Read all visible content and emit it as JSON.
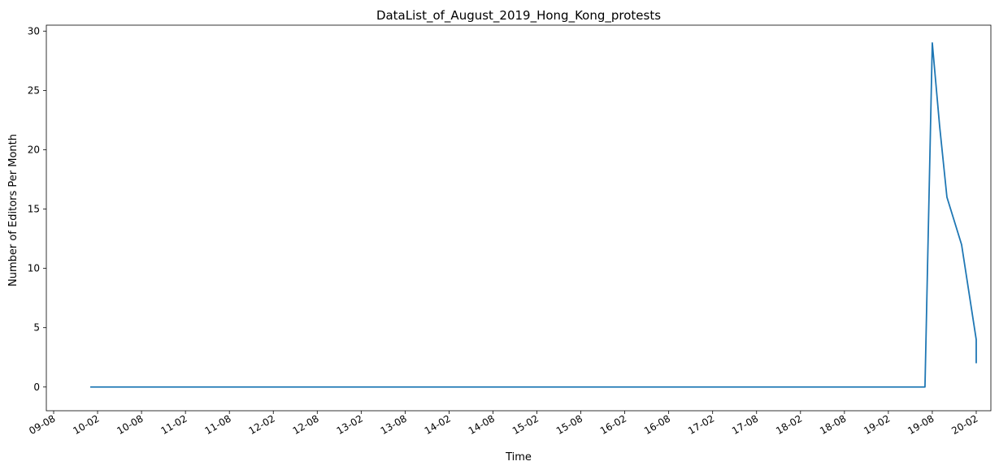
{
  "chart_data": {
    "type": "line",
    "title": "DataList_of_August_2019_Hong_Kong_protests",
    "xlabel": "Time",
    "ylabel": "Number of Editors Per Month",
    "x_tick_labels": [
      "09-08",
      "10-02",
      "10-08",
      "11-02",
      "11-08",
      "12-02",
      "12-08",
      "13-02",
      "13-08",
      "14-02",
      "14-08",
      "15-02",
      "15-08",
      "16-02",
      "16-08",
      "17-02",
      "17-08",
      "18-02",
      "18-08",
      "19-02",
      "19-08",
      "20-02"
    ],
    "y_ticks": [
      0,
      5,
      10,
      15,
      20,
      25,
      30
    ],
    "ylim": [
      -2,
      30.5
    ],
    "xlim": [
      "2009-07",
      "2020-04"
    ],
    "grid": false,
    "series": [
      {
        "color": "#1f77b4",
        "points": [
          [
            "2010-01",
            0
          ],
          [
            "2019-07",
            0
          ],
          [
            "2019-08",
            29
          ],
          [
            "2019-09",
            22
          ],
          [
            "2019-10",
            16
          ],
          [
            "2019-11",
            14
          ],
          [
            "2019-12",
            12
          ],
          [
            "2020-01",
            8
          ],
          [
            "2020-02",
            4
          ],
          [
            "2020-02",
            2
          ]
        ]
      }
    ]
  }
}
